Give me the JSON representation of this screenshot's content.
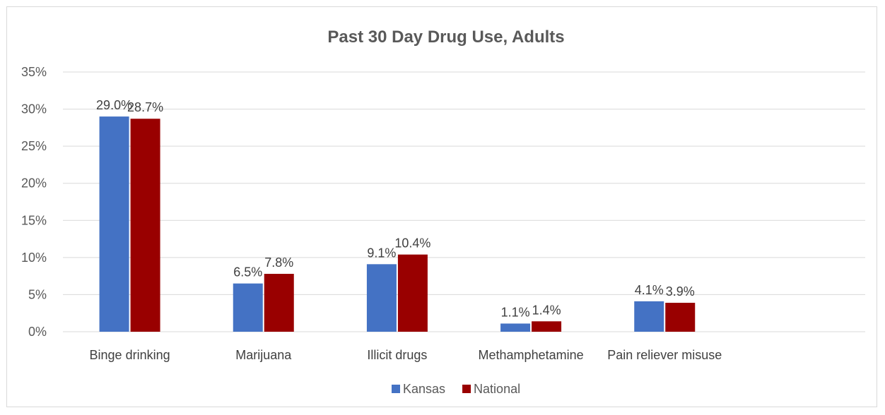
{
  "chart_data": {
    "type": "bar",
    "title": "Past 30 Day Drug Use, Adults",
    "categories": [
      "Binge drinking",
      "Marijuana",
      "Illicit drugs",
      "Methamphetamine",
      "Pain reliever misuse"
    ],
    "series": [
      {
        "name": "Kansas",
        "color": "#4472c4",
        "values": [
          29.0,
          6.5,
          9.1,
          1.1,
          4.1
        ],
        "labels": [
          "29.0%",
          "6.5%",
          "9.1%",
          "1.1%",
          "4.1%"
        ]
      },
      {
        "name": "National",
        "color": "#990000",
        "values": [
          28.7,
          7.8,
          10.4,
          1.4,
          3.9
        ],
        "labels": [
          "28.7%",
          "7.8%",
          "10.4%",
          "1.4%",
          "3.9%"
        ]
      }
    ],
    "ylim": [
      0,
      35
    ],
    "yticks": [
      0,
      5,
      10,
      15,
      20,
      25,
      30,
      35
    ],
    "ytick_labels": [
      "0%",
      "5%",
      "10%",
      "15%",
      "20%",
      "25%",
      "30%",
      "35%"
    ],
    "xlabel": "",
    "ylabel": "",
    "grid": true,
    "gridline_color": "#d9d9d9",
    "legend_position": "bottom"
  }
}
